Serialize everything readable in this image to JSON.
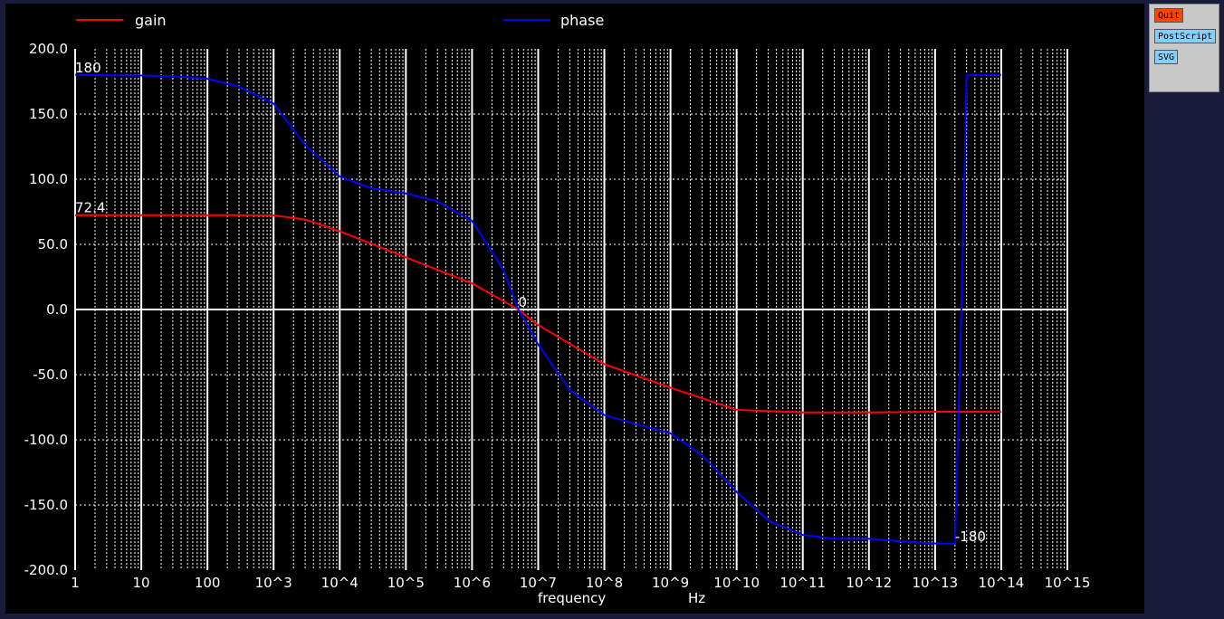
{
  "buttons": {
    "quit": "Quit",
    "postscript": "PostScript",
    "svg": "SVG"
  },
  "chart_data": {
    "type": "line",
    "xlabel": "frequency",
    "xunit": "Hz",
    "xscale": "log",
    "xlim": [
      1,
      1000000000000000.0
    ],
    "ylim": [
      -200,
      200
    ],
    "grid": true,
    "legend_position": "top",
    "x_tick_labels": [
      "1",
      "10",
      "100",
      "10^3",
      "10^4",
      "10^5",
      "10^6",
      "10^7",
      "10^8",
      "10^9",
      "10^10",
      "10^11",
      "10^12",
      "10^13",
      "10^14",
      "10^15"
    ],
    "y_ticks": [
      200,
      150,
      100,
      50,
      0,
      -50,
      -100,
      -150,
      -200
    ],
    "y_tick_labels": [
      "200.0",
      "150.0",
      "100.0",
      "50.0",
      "0.0",
      "-50.0",
      "-100.0",
      "-150.0",
      "-200.0"
    ],
    "series": [
      {
        "name": "gain",
        "color": "#ff0000",
        "x": [
          1,
          10,
          100,
          1000,
          3000,
          10000,
          100000,
          1000000,
          5000000,
          10000000,
          100000000,
          1000000000,
          10000000000,
          100000000000,
          1000000000000,
          10000000000000,
          100000000000000
        ],
        "y": [
          72.4,
          72.4,
          72.4,
          72.2,
          69,
          60,
          40,
          20,
          0,
          -12,
          -42,
          -60,
          -77,
          -79,
          -79,
          -78.5,
          -78.5
        ]
      },
      {
        "name": "phase",
        "color": "#0000ff",
        "x": [
          1,
          10,
          30,
          100,
          300,
          1000,
          3000,
          10000,
          30000,
          100000,
          300000,
          1000000,
          3000000,
          5000000,
          10000000,
          30000000,
          100000000,
          300000000,
          1000000000,
          3000000000,
          10000000000,
          30000000000,
          100000000000,
          300000000000,
          1000000000000,
          3000000000000,
          10000000000000,
          20000000000000,
          25000000000000,
          30000000000000,
          100000000000000
        ],
        "y": [
          180,
          179.5,
          179,
          177,
          171,
          158,
          126,
          102,
          93,
          89,
          83,
          68,
          30,
          0,
          -27,
          -62,
          -81,
          -88,
          -95,
          -112,
          -140,
          -162,
          -173,
          -176,
          -176,
          -178,
          -179.5,
          -179.8,
          0,
          180,
          180
        ]
      }
    ],
    "annotations": [
      {
        "text": "180",
        "x": 1,
        "y": 180
      },
      {
        "text": "72.4",
        "x": 1,
        "y": 72.4
      },
      {
        "text": "0",
        "x": 5000000,
        "y": 0
      },
      {
        "text": "-180",
        "x": 20000000000000,
        "y": -180
      }
    ]
  }
}
